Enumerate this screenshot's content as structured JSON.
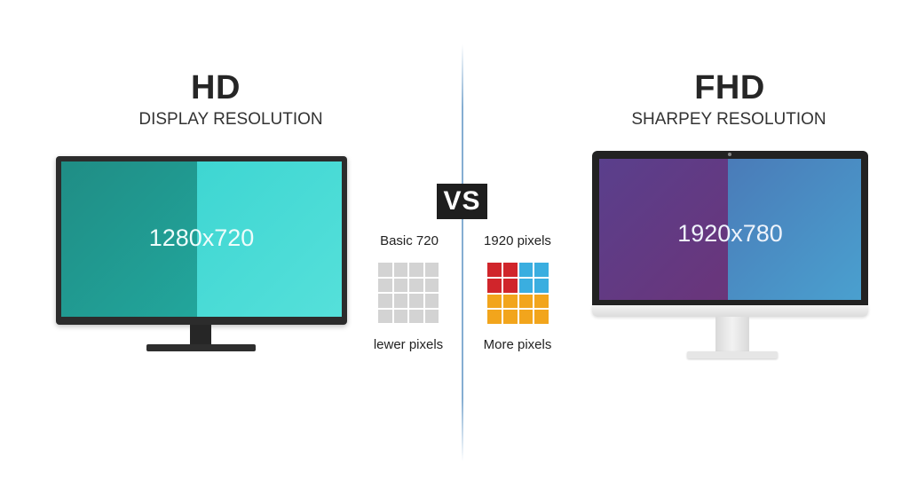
{
  "left": {
    "title": "HD",
    "subtitle": "DISPLAY RESOLUTION",
    "screen_resolution": "1280x720",
    "top_label": "Basic 720",
    "bottom_label": "lewer pixels",
    "colors": {
      "screen_left": "#1f8d85",
      "screen_right": "#3ed6d2",
      "grid_cell": "#d3d3d3"
    }
  },
  "center": {
    "vs_label": "VS"
  },
  "right": {
    "title": "FHD",
    "subtitle": "SHARPEY RESOLUTION",
    "screen_resolution": "1920x780",
    "top_label": "1920 pixels",
    "bottom_label": "More pixels",
    "colors": {
      "screen_left": "#5a3f8c",
      "screen_right": "#4a7bb8",
      "grid": [
        [
          "#d0252b",
          "#d0252b",
          "#3aaee0",
          "#3aaee0"
        ],
        [
          "#d0252b",
          "#d0252b",
          "#3aaee0",
          "#3aaee0"
        ],
        [
          "#f2a51c",
          "#f2a51c",
          "#f2a51c",
          "#f2a51c"
        ],
        [
          "#f2a51c",
          "#f2a51c",
          "#f2a51c",
          "#f2a51c"
        ]
      ]
    }
  }
}
